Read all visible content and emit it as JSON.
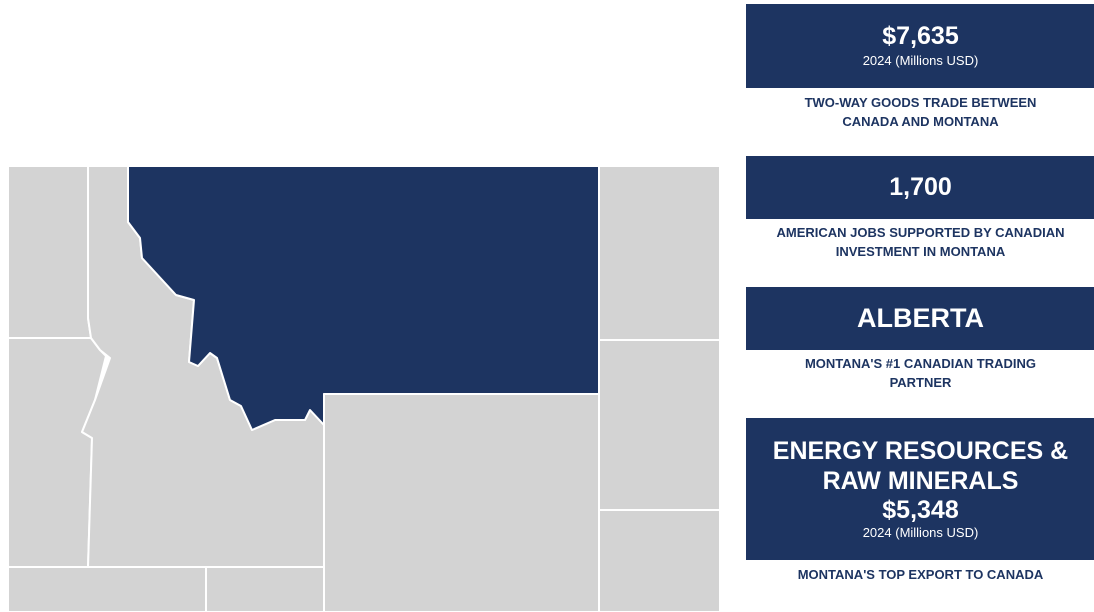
{
  "map": {
    "highlighted_state": "Montana",
    "colors": {
      "highlight": "#1d3461",
      "neighbor": "#d3d3d3",
      "border": "#ffffff"
    }
  },
  "stats": [
    {
      "value": "$7,635",
      "sub": "2024 (Millions USD)",
      "caption_line1": "TWO-WAY GOODS TRADE BETWEEN",
      "caption_line2": "CANADA AND MONTANA"
    },
    {
      "value": "1,700",
      "caption_line1": "AMERICAN JOBS SUPPORTED BY CANADIAN",
      "caption_line2": "INVESTMENT IN MONTANA"
    },
    {
      "value": "ALBERTA",
      "caption_line1": "MONTANA'S #1 CANADIAN TRADING",
      "caption_line2": "PARTNER"
    },
    {
      "title_line1": "ENERGY RESOURCES &",
      "title_line2": "RAW MINERALS",
      "value": "$5,348",
      "sub": "2024 (Millions USD)",
      "caption_line1": "MONTANA'S TOP EXPORT TO CANADA"
    }
  ],
  "theme": {
    "navy": "#1d3461"
  }
}
